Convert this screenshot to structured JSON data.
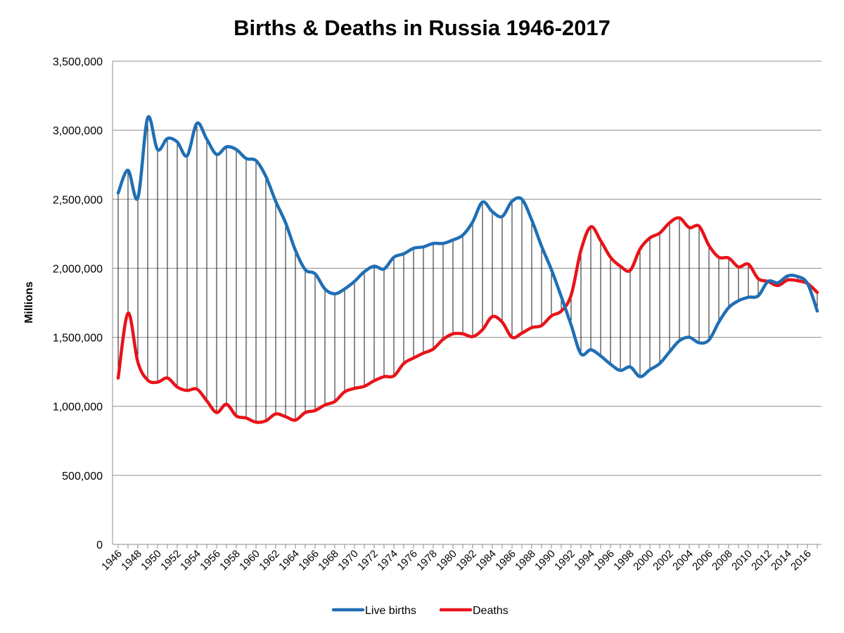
{
  "chart_data": {
    "type": "line",
    "title": "Births & Deaths in Russia 1946-2017",
    "xlabel": "",
    "ylabel": "Millions",
    "ylim": [
      0,
      3500000
    ],
    "yticks": [
      "0",
      "500,000",
      "1,000,000",
      "1,500,000",
      "2,000,000",
      "2,500,000",
      "3,000,000",
      "3,500,000"
    ],
    "xtick_labels": [
      "1946",
      "1948",
      "1950",
      "1952",
      "1954",
      "1956",
      "1958",
      "1960",
      "1962",
      "1964",
      "1966",
      "1968",
      "1970",
      "1972",
      "1974",
      "1976",
      "1978",
      "1980",
      "1982",
      "1984",
      "1986",
      "1988",
      "1990",
      "1992",
      "1994",
      "1996",
      "1998",
      "2000",
      "2002",
      "2004",
      "2006",
      "2008",
      "2010",
      "2012",
      "2014",
      "2016"
    ],
    "grid": true,
    "legend_position": "bottom",
    "x": [
      1946,
      1947,
      1948,
      1949,
      1950,
      1951,
      1952,
      1953,
      1954,
      1955,
      1956,
      1957,
      1958,
      1959,
      1960,
      1961,
      1962,
      1963,
      1964,
      1965,
      1966,
      1967,
      1968,
      1969,
      1970,
      1971,
      1972,
      1973,
      1974,
      1975,
      1976,
      1977,
      1978,
      1979,
      1980,
      1981,
      1982,
      1983,
      1984,
      1985,
      1986,
      1987,
      1988,
      1989,
      1990,
      1991,
      1992,
      1993,
      1994,
      1995,
      1996,
      1997,
      1998,
      1999,
      2000,
      2001,
      2002,
      2003,
      2004,
      2005,
      2006,
      2007,
      2008,
      2009,
      2010,
      2011,
      2012,
      2013,
      2014,
      2015,
      2016,
      2017
    ],
    "series": [
      {
        "name": "Live births",
        "color": "#1f6fb5",
        "values": [
          2545000,
          2710000,
          2510000,
          3090000,
          2860000,
          2940000,
          2915000,
          2815000,
          3050000,
          2935000,
          2825000,
          2880000,
          2860000,
          2795000,
          2780000,
          2665000,
          2485000,
          2330000,
          2130000,
          1990000,
          1960000,
          1850000,
          1815000,
          1850000,
          1905000,
          1975000,
          2015000,
          1995000,
          2080000,
          2105000,
          2145000,
          2155000,
          2180000,
          2180000,
          2205000,
          2240000,
          2335000,
          2480000,
          2410000,
          2375000,
          2485000,
          2500000,
          2350000,
          2160000,
          1990000,
          1795000,
          1590000,
          1380000,
          1410000,
          1365000,
          1305000,
          1260000,
          1285000,
          1215000,
          1265000,
          1310000,
          1395000,
          1475000,
          1500000,
          1460000,
          1480000,
          1610000,
          1715000,
          1765000,
          1790000,
          1800000,
          1905000,
          1895000,
          1945000,
          1940000,
          1890000,
          1690000
        ]
      },
      {
        "name": "Deaths",
        "color": "#e8131a",
        "values": [
          1205000,
          1675000,
          1320000,
          1190000,
          1175000,
          1205000,
          1140000,
          1115000,
          1125000,
          1040000,
          955000,
          1015000,
          930000,
          915000,
          885000,
          895000,
          945000,
          925000,
          900000,
          955000,
          970000,
          1010000,
          1035000,
          1105000,
          1130000,
          1145000,
          1185000,
          1215000,
          1220000,
          1310000,
          1350000,
          1385000,
          1415000,
          1485000,
          1525000,
          1525000,
          1505000,
          1555000,
          1650000,
          1610000,
          1500000,
          1530000,
          1570000,
          1585000,
          1655000,
          1690000,
          1805000,
          2130000,
          2300000,
          2200000,
          2080000,
          2015000,
          1985000,
          2140000,
          2220000,
          2255000,
          2330000,
          2365000,
          2295000,
          2305000,
          2165000,
          2080000,
          2075000,
          2010000,
          2030000,
          1925000,
          1905000,
          1875000,
          1915000,
          1910000,
          1890000,
          1825000
        ]
      }
    ]
  }
}
